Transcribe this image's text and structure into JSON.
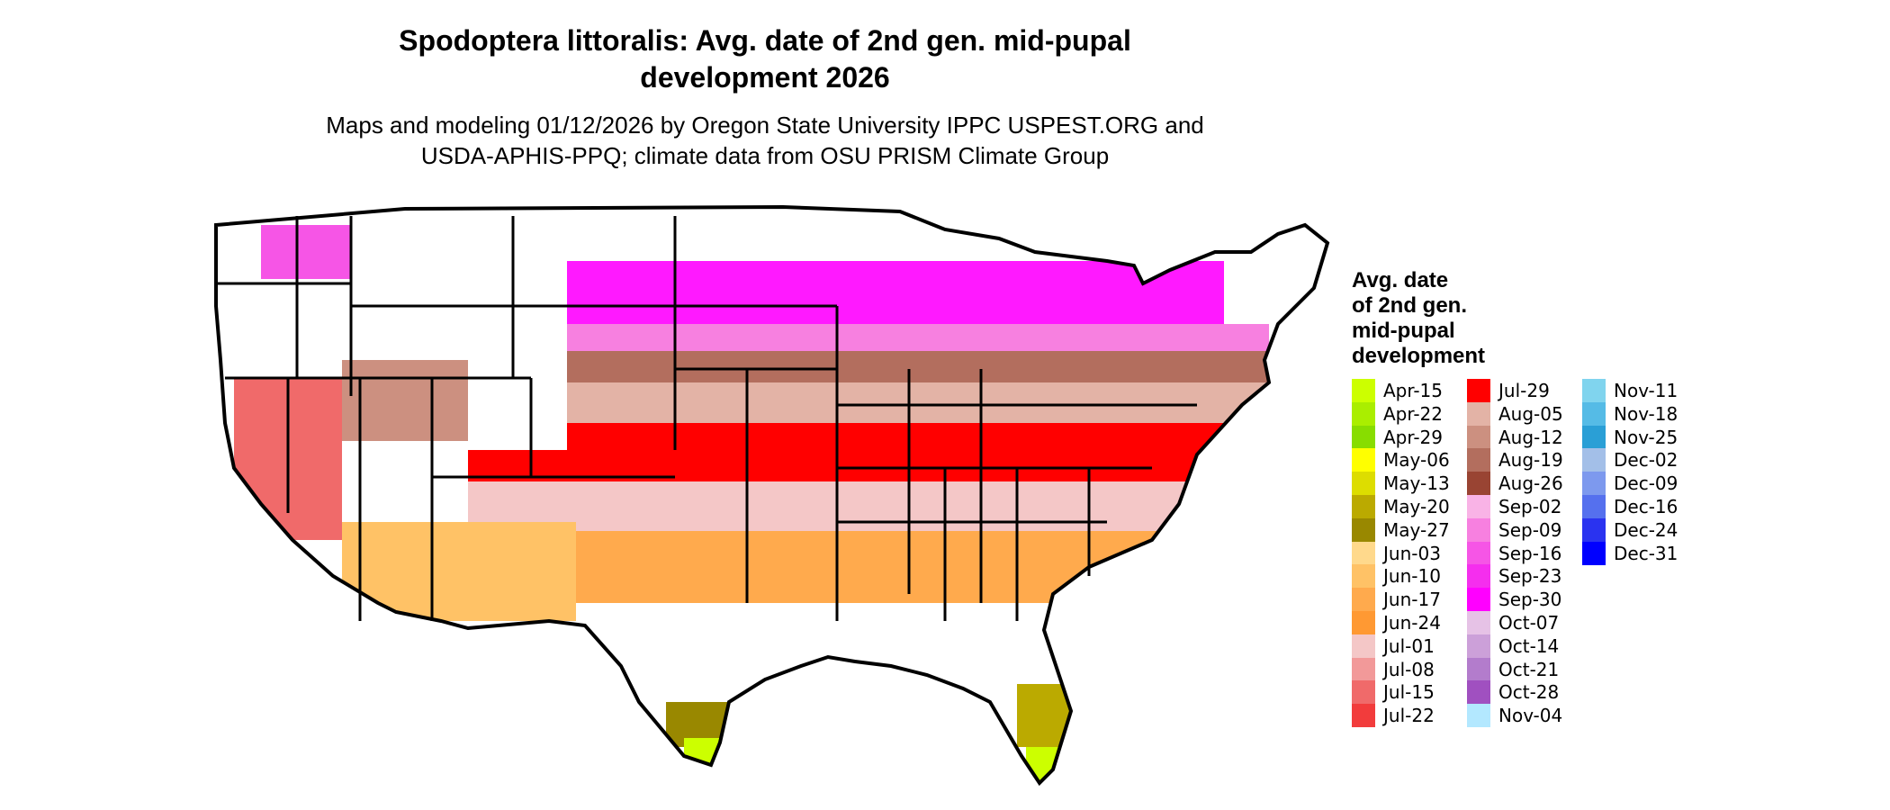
{
  "title_line1": "Spodoptera littoralis: Avg. date of 2nd gen. mid-pupal",
  "title_line2": "development 2026",
  "subtitle_line1": "Maps and modeling 01/12/2026 by Oregon State University IPPC USPEST.ORG and",
  "subtitle_line2": "USDA-APHIS-PPQ; climate data from OSU PRISM Climate Group",
  "legend": {
    "title_lines": [
      "Avg. date",
      "of 2nd gen.",
      "mid-pupal",
      "development"
    ],
    "items": [
      {
        "label": "Apr-15",
        "color": "#ccff00"
      },
      {
        "label": "Apr-22",
        "color": "#aaee00"
      },
      {
        "label": "Apr-29",
        "color": "#88dd00"
      },
      {
        "label": "May-06",
        "color": "#ffff00"
      },
      {
        "label": "May-13",
        "color": "#dddd00"
      },
      {
        "label": "May-20",
        "color": "#bbaa00"
      },
      {
        "label": "May-27",
        "color": "#998800"
      },
      {
        "label": "Jun-03",
        "color": "#ffd98c"
      },
      {
        "label": "Jun-10",
        "color": "#ffc266"
      },
      {
        "label": "Jun-17",
        "color": "#ffaa4d"
      },
      {
        "label": "Jun-24",
        "color": "#ff9933"
      },
      {
        "label": "Jul-01",
        "color": "#f4c7c7"
      },
      {
        "label": "Jul-08",
        "color": "#f29999"
      },
      {
        "label": "Jul-15",
        "color": "#f06a6a"
      },
      {
        "label": "Jul-22",
        "color": "#f23c3c"
      },
      {
        "label": "Jul-29",
        "color": "#ff0000"
      },
      {
        "label": "Aug-05",
        "color": "#e3b3a6"
      },
      {
        "label": "Aug-12",
        "color": "#cc9080"
      },
      {
        "label": "Aug-19",
        "color": "#b36e5e"
      },
      {
        "label": "Aug-26",
        "color": "#994433"
      },
      {
        "label": "Sep-02",
        "color": "#f9b3e6"
      },
      {
        "label": "Sep-09",
        "color": "#f780e0"
      },
      {
        "label": "Sep-16",
        "color": "#f655e6"
      },
      {
        "label": "Sep-23",
        "color": "#f52eee"
      },
      {
        "label": "Sep-30",
        "color": "#ff00ff"
      },
      {
        "label": "Oct-07",
        "color": "#e6c2e6"
      },
      {
        "label": "Oct-14",
        "color": "#cca0d9"
      },
      {
        "label": "Oct-21",
        "color": "#b37ccc"
      },
      {
        "label": "Oct-28",
        "color": "#a050c0"
      },
      {
        "label": "Nov-04",
        "color": "#b3e8ff"
      },
      {
        "label": "Nov-11",
        "color": "#80d4ee"
      },
      {
        "label": "Nov-18",
        "color": "#55bbe6"
      },
      {
        "label": "Nov-25",
        "color": "#2a9fd6"
      },
      {
        "label": "Dec-02",
        "color": "#a3bfe8"
      },
      {
        "label": "Dec-09",
        "color": "#7d99ee"
      },
      {
        "label": "Dec-16",
        "color": "#5570ee"
      },
      {
        "label": "Dec-24",
        "color": "#2a33f0"
      },
      {
        "label": "Dec-31",
        "color": "#0000ff"
      }
    ],
    "column_count": 3,
    "rows_per_column": 15
  },
  "map_bands": [
    {
      "zone": "northern-plains-upper-midwest",
      "color": "#ff00ff"
    },
    {
      "zone": "northern-transition",
      "color": "#f52eee"
    },
    {
      "zone": "central-belt",
      "color": "#b36e5e"
    },
    {
      "zone": "mid-south-light",
      "color": "#e3b3a6"
    },
    {
      "zone": "south-red",
      "color": "#ff0000"
    },
    {
      "zone": "deep-south-pink",
      "color": "#f4c7c7"
    },
    {
      "zone": "gulf-orange",
      "color": "#ffaa4d"
    },
    {
      "zone": "texas-florida-tip",
      "color": "#998800"
    },
    {
      "zone": "extreme-south-tips",
      "color": "#ccff00"
    },
    {
      "zone": "california-valley",
      "color": "#f06a6a"
    },
    {
      "zone": "desert-southwest",
      "color": "#ffc266"
    },
    {
      "zone": "mountain-west-no-development",
      "color": "#ffffff"
    }
  ]
}
